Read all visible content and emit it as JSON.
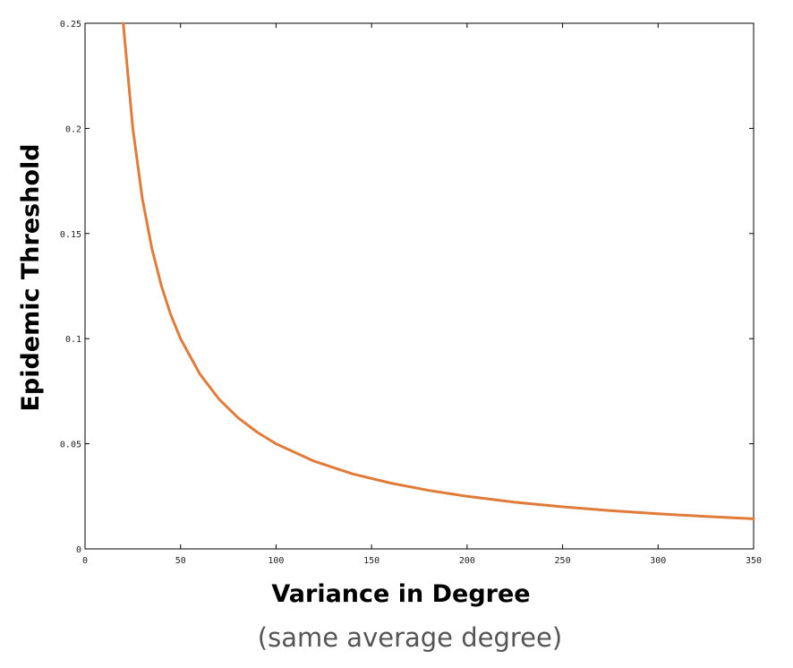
{
  "chart_data": {
    "type": "line",
    "xlabel": "Variance in Degree",
    "xlabel_note": "(same average degree)",
    "ylabel": "Epidemic Threshold",
    "xlim": [
      0,
      350
    ],
    "ylim": [
      0,
      0.25
    ],
    "x_ticks": [
      "0",
      "50",
      "100",
      "150",
      "200",
      "250",
      "300",
      "350"
    ],
    "y_ticks": [
      "0",
      "0.05",
      "0.1",
      "0.15",
      "0.2",
      "0.25"
    ],
    "x_tick_values": [
      0,
      50,
      100,
      150,
      200,
      250,
      300,
      350
    ],
    "y_tick_values": [
      0,
      0.05,
      0.1,
      0.15,
      0.2,
      0.25
    ],
    "grid": false,
    "series": [
      {
        "color": "#e07b3a",
        "x": [
          20,
          25,
          30,
          35,
          40,
          45,
          50,
          60,
          70,
          80,
          90,
          100,
          120,
          140,
          160,
          180,
          200,
          225,
          250,
          275,
          300,
          325,
          350
        ],
        "y": [
          0.25,
          0.2,
          0.1667,
          0.1429,
          0.125,
          0.1111,
          0.1,
          0.0833,
          0.0714,
          0.0625,
          0.0556,
          0.05,
          0.0417,
          0.0357,
          0.0313,
          0.0278,
          0.025,
          0.0222,
          0.02,
          0.0182,
          0.0167,
          0.0154,
          0.0143
        ]
      }
    ]
  }
}
